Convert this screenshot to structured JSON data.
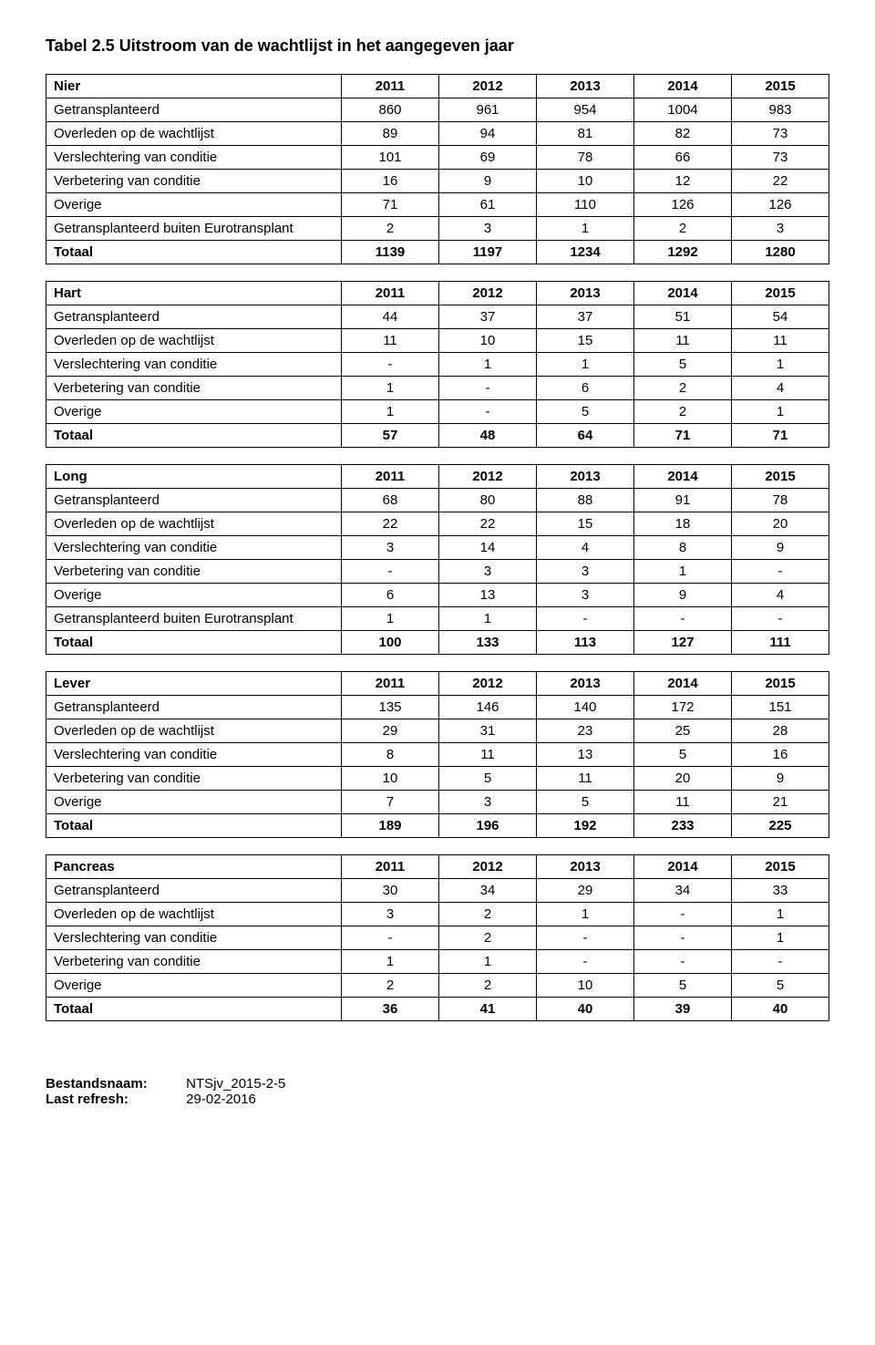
{
  "title": "Tabel 2.5 Uitstroom van de wachtlijst in het aangegeven jaar",
  "years": [
    "2011",
    "2012",
    "2013",
    "2014",
    "2015"
  ],
  "tables": [
    {
      "heading": "Nier",
      "rows": [
        {
          "label": "Getransplanteerd",
          "vals": [
            "860",
            "961",
            "954",
            "1004",
            "983"
          ]
        },
        {
          "label": "Overleden op de wachtlijst",
          "vals": [
            "89",
            "94",
            "81",
            "82",
            "73"
          ]
        },
        {
          "label": "Verslechtering van conditie",
          "vals": [
            "101",
            "69",
            "78",
            "66",
            "73"
          ]
        },
        {
          "label": "Verbetering van conditie",
          "vals": [
            "16",
            "9",
            "10",
            "12",
            "22"
          ]
        },
        {
          "label": "Overige",
          "vals": [
            "71",
            "61",
            "110",
            "126",
            "126"
          ]
        },
        {
          "label": "Getransplanteerd buiten Eurotransplant",
          "vals": [
            "2",
            "3",
            "1",
            "2",
            "3"
          ]
        }
      ],
      "total": {
        "label": "Totaal",
        "vals": [
          "1139",
          "1197",
          "1234",
          "1292",
          "1280"
        ]
      }
    },
    {
      "heading": "Hart",
      "rows": [
        {
          "label": "Getransplanteerd",
          "vals": [
            "44",
            "37",
            "37",
            "51",
            "54"
          ]
        },
        {
          "label": "Overleden op de wachtlijst",
          "vals": [
            "11",
            "10",
            "15",
            "11",
            "11"
          ]
        },
        {
          "label": "Verslechtering van conditie",
          "vals": [
            "-",
            "1",
            "1",
            "5",
            "1"
          ]
        },
        {
          "label": "Verbetering van conditie",
          "vals": [
            "1",
            "-",
            "6",
            "2",
            "4"
          ]
        },
        {
          "label": "Overige",
          "vals": [
            "1",
            "-",
            "5",
            "2",
            "1"
          ]
        }
      ],
      "total": {
        "label": "Totaal",
        "vals": [
          "57",
          "48",
          "64",
          "71",
          "71"
        ]
      }
    },
    {
      "heading": "Long",
      "rows": [
        {
          "label": "Getransplanteerd",
          "vals": [
            "68",
            "80",
            "88",
            "91",
            "78"
          ]
        },
        {
          "label": "Overleden op de wachtlijst",
          "vals": [
            "22",
            "22",
            "15",
            "18",
            "20"
          ]
        },
        {
          "label": "Verslechtering van conditie",
          "vals": [
            "3",
            "14",
            "4",
            "8",
            "9"
          ]
        },
        {
          "label": "Verbetering van conditie",
          "vals": [
            "-",
            "3",
            "3",
            "1",
            "-"
          ]
        },
        {
          "label": "Overige",
          "vals": [
            "6",
            "13",
            "3",
            "9",
            "4"
          ]
        },
        {
          "label": "Getransplanteerd buiten Eurotransplant",
          "vals": [
            "1",
            "1",
            "-",
            "-",
            "-"
          ]
        }
      ],
      "total": {
        "label": "Totaal",
        "vals": [
          "100",
          "133",
          "113",
          "127",
          "111"
        ]
      }
    },
    {
      "heading": "Lever",
      "rows": [
        {
          "label": "Getransplanteerd",
          "vals": [
            "135",
            "146",
            "140",
            "172",
            "151"
          ]
        },
        {
          "label": "Overleden op de wachtlijst",
          "vals": [
            "29",
            "31",
            "23",
            "25",
            "28"
          ]
        },
        {
          "label": "Verslechtering van conditie",
          "vals": [
            "8",
            "11",
            "13",
            "5",
            "16"
          ]
        },
        {
          "label": "Verbetering van conditie",
          "vals": [
            "10",
            "5",
            "11",
            "20",
            "9"
          ]
        },
        {
          "label": "Overige",
          "vals": [
            "7",
            "3",
            "5",
            "11",
            "21"
          ]
        }
      ],
      "total": {
        "label": "Totaal",
        "vals": [
          "189",
          "196",
          "192",
          "233",
          "225"
        ]
      }
    },
    {
      "heading": "Pancreas",
      "rows": [
        {
          "label": "Getransplanteerd",
          "vals": [
            "30",
            "34",
            "29",
            "34",
            "33"
          ]
        },
        {
          "label": "Overleden op de wachtlijst",
          "vals": [
            "3",
            "2",
            "1",
            "-",
            "1"
          ]
        },
        {
          "label": "Verslechtering van conditie",
          "vals": [
            "-",
            "2",
            "-",
            "-",
            "1"
          ]
        },
        {
          "label": "Verbetering van conditie",
          "vals": [
            "1",
            "1",
            "-",
            "-",
            "-"
          ]
        },
        {
          "label": "Overige",
          "vals": [
            "2",
            "2",
            "10",
            "5",
            "5"
          ]
        }
      ],
      "total": {
        "label": "Totaal",
        "vals": [
          "36",
          "41",
          "40",
          "39",
          "40"
        ]
      }
    }
  ],
  "footer": {
    "file_label": "Bestandsnaam:",
    "file_value": "NTSjv_2015-2-5",
    "refresh_label": "Last refresh:",
    "refresh_value": "29-02-2016"
  }
}
